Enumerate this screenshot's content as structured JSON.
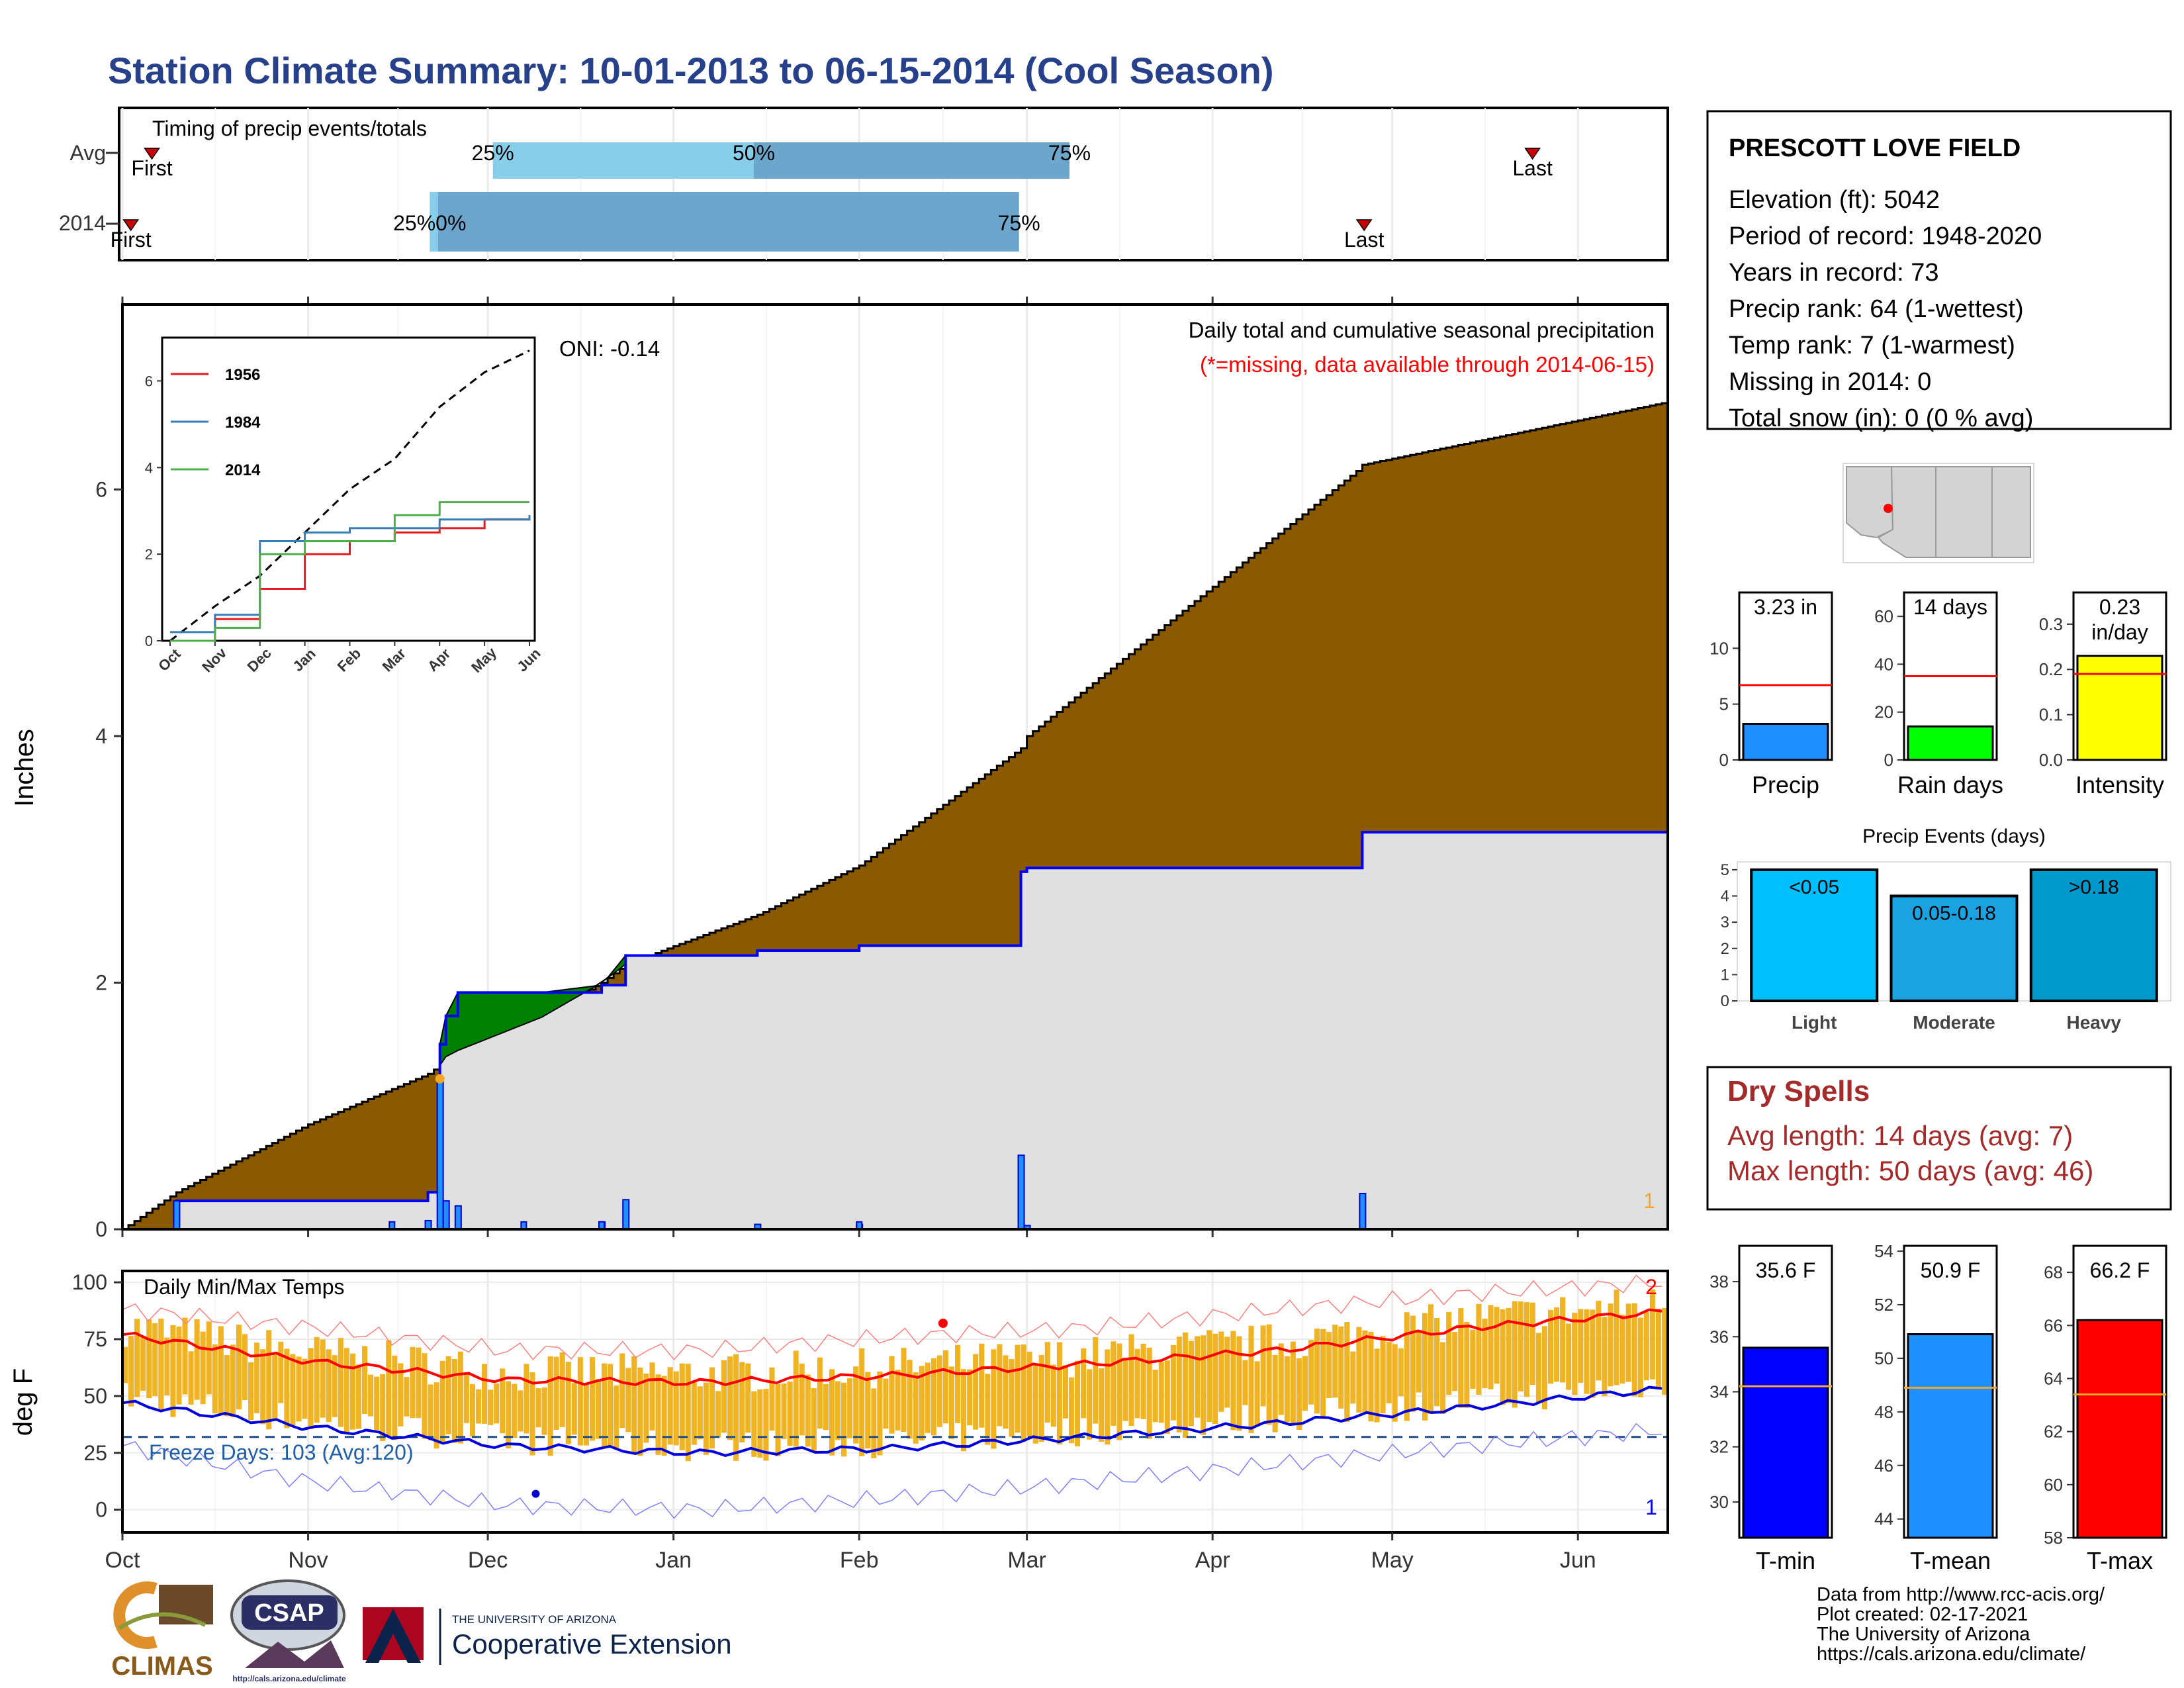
{
  "title": "Station Climate Summary: 10-01-2013 to 06-15-2014 (Cool Season)",
  "colors": {
    "title": "#27408b",
    "avg_fill": "#8b5a00",
    "year_fill": "#e0e0e0",
    "year_line": "#0000ff",
    "above_avg": "#008000",
    "q1": "#87ceeb",
    "q2": "#6ca6cd"
  },
  "timing": {
    "label": "Timing of precip events/totals",
    "rows": [
      {
        "name": "Avg",
        "first_label": "First",
        "last_label": "Last",
        "first": 0.07,
        "p25": 0.88,
        "p50": 1.5,
        "p75": 2.25,
        "last": 3.35
      },
      {
        "name": "2014",
        "first_label": "First",
        "last_label": "Last",
        "first": 0.02,
        "p25": 0.73,
        "p50": 0.75,
        "p75": 2.13,
        "last": 2.95
      }
    ],
    "pct_labels": [
      "25%",
      "50%",
      "75%"
    ],
    "overlap_label": "25%0%"
  },
  "precip": {
    "ylabel": "Inches",
    "oni": "ONI: -0.14",
    "note1": "Daily total and cumulative seasonal precipitation",
    "note2": "(*=missing, data available through 2014-06-15)",
    "corner_label": "1",
    "yticks": [
      "0",
      "2",
      "4",
      "6"
    ],
    "ylim": [
      0,
      7.5
    ]
  },
  "inset": {
    "legend": [
      "1956",
      "1984",
      "2014"
    ],
    "legend_colors": [
      "#e41a1c",
      "#377eb8",
      "#4daf4a"
    ],
    "yticks": [
      "0",
      "2",
      "4",
      "6"
    ],
    "xticks": [
      "Oct",
      "Nov",
      "Dec",
      "Jan",
      "Feb",
      "Mar",
      "Apr",
      "May",
      "Jun"
    ]
  },
  "temp": {
    "ylabel": "deg F",
    "label": "Daily Min/Max Temps",
    "freeze": "Freeze Days: 103 (Avg:120)",
    "marker_top": "2",
    "marker_bottom": "1",
    "yticks": [
      "0",
      "25",
      "50",
      "75",
      "100"
    ]
  },
  "months": [
    "Oct",
    "Nov",
    "Dec",
    "Jan",
    "Feb",
    "Mar",
    "Apr",
    "May",
    "Jun"
  ],
  "station": {
    "name": "PRESCOTT LOVE FIELD",
    "lines": [
      "Elevation (ft): 5042",
      "Period of record: 1948-2020",
      "Years in record: 73",
      "Precip rank: 64 (1-wettest)",
      "Temp rank: 7 (1-warmest)",
      "Missing in 2014: 0",
      "Total snow (in): 0 (0 % avg)"
    ]
  },
  "chart_data": [
    {
      "type": "area",
      "title": "Daily total and cumulative seasonal precipitation",
      "ylabel": "Inches",
      "ylim": [
        0,
        7.5
      ],
      "x": [
        "2013-10-01",
        "2013-10-10",
        "2013-11-01",
        "2013-11-21",
        "2013-11-23",
        "2013-11-24",
        "2013-11-26",
        "2013-12-10",
        "2013-12-20",
        "2013-12-24",
        "2014-01-15",
        "2014-02-01",
        "2014-02-28",
        "2014-03-01",
        "2014-04-25",
        "2014-04-26",
        "2014-06-15"
      ],
      "series": [
        {
          "name": "Avg",
          "values": [
            0,
            0.3,
            0.85,
            1.26,
            1.33,
            1.4,
            1.45,
            1.72,
            2.0,
            2.15,
            2.55,
            2.95,
            3.9,
            4.0,
            6.15,
            6.2,
            6.7
          ]
        },
        {
          "name": "2014",
          "values": [
            0,
            0.23,
            0.23,
            0.3,
            1.5,
            1.73,
            1.92,
            1.92,
            1.98,
            2.22,
            2.26,
            2.3,
            2.9,
            2.93,
            2.93,
            3.22,
            3.22
          ]
        }
      ]
    },
    {
      "type": "line",
      "title": "",
      "xlabel": "",
      "ylabel": "",
      "ylim": [
        0,
        7
      ],
      "x": [
        "Oct",
        "Nov",
        "Dec",
        "Jan",
        "Feb",
        "Mar",
        "Apr",
        "May",
        "Jun"
      ],
      "series": [
        {
          "name": "",
          "values": [
            0,
            0.8,
            1.5,
            2.5,
            3.5,
            4.2,
            5.4,
            6.2,
            6.7
          ]
        },
        {
          "name": "1956",
          "values": [
            0,
            0.5,
            1.2,
            2.0,
            2.3,
            2.5,
            2.6,
            2.8,
            2.9
          ]
        },
        {
          "name": "1984",
          "values": [
            0.2,
            0.6,
            2.3,
            2.5,
            2.6,
            2.6,
            2.8,
            2.8,
            2.9
          ]
        },
        {
          "name": "2014",
          "values": [
            0,
            0.3,
            2.0,
            2.3,
            2.3,
            2.9,
            3.2,
            3.2,
            3.2
          ]
        }
      ]
    },
    {
      "type": "line",
      "title": "Daily Min/Max Temps",
      "ylabel": "deg F",
      "ylim": [
        -10,
        105
      ],
      "x": [
        "Oct",
        "Nov",
        "Dec",
        "Jan",
        "Feb",
        "Mar",
        "Apr",
        "May",
        "Jun"
      ],
      "series": [
        {
          "name": "Avg max",
          "values": [
            77,
            65,
            57,
            56,
            59,
            64,
            70,
            80,
            87
          ]
        },
        {
          "name": "Avg min",
          "values": [
            47,
            36,
            28,
            25,
            27,
            32,
            38,
            45,
            53
          ]
        },
        {
          "name": "Record max",
          "values": [
            88,
            80,
            70,
            70,
            76,
            80,
            88,
            95,
            100
          ]
        },
        {
          "name": "Record min",
          "values": [
            28,
            12,
            2,
            0,
            5,
            12,
            20,
            28,
            35
          ]
        }
      ],
      "freeze_days": 103,
      "freeze_days_avg": 120
    },
    {
      "type": "bar",
      "categories": [
        "Precip",
        "Rain days",
        "Intensity"
      ],
      "values": [
        3.23,
        14,
        0.23
      ],
      "labels": [
        "3.23 in",
        "14 days",
        "0.23\nin/day"
      ],
      "avg": [
        6.7,
        35,
        0.19
      ],
      "ylims": [
        [
          0,
          15
        ],
        [
          0,
          70
        ],
        [
          0,
          0.37
        ]
      ],
      "yticks": [
        [
          "0",
          "5",
          "10"
        ],
        [
          "0",
          "20",
          "40",
          "60"
        ],
        [
          "0.0",
          "0.1",
          "0.2",
          "0.3"
        ]
      ],
      "colors": [
        "#1e90ff",
        "#00ff00",
        "#ffff00"
      ]
    },
    {
      "type": "bar",
      "title": "Precip Events (days)",
      "categories": [
        "Light",
        "Moderate",
        "Heavy"
      ],
      "values": [
        5,
        4,
        5
      ],
      "labels": [
        "<0.05",
        "0.05-0.18",
        ">0.18"
      ],
      "ylim": [
        0,
        5.3
      ],
      "yticks": [
        "0",
        "1",
        "2",
        "3",
        "4",
        "5"
      ],
      "colors": [
        "#00bfff",
        "#1aa3e0",
        "#0099cc"
      ]
    },
    {
      "type": "bar",
      "categories": [
        "T-min",
        "T-mean",
        "T-max"
      ],
      "values": [
        35.6,
        50.9,
        66.2
      ],
      "labels": [
        "35.6 F",
        "50.9 F",
        "66.2 F"
      ],
      "avg": [
        34.2,
        48.9,
        63.4
      ],
      "ylims": [
        [
          28.7,
          39.3
        ],
        [
          43.3,
          54.2
        ],
        [
          58,
          69
        ]
      ],
      "yticks": [
        [
          "30",
          "32",
          "34",
          "36",
          "38"
        ],
        [
          "44",
          "46",
          "48",
          "50",
          "52",
          "54"
        ],
        [
          "58",
          "60",
          "62",
          "64",
          "66",
          "68"
        ]
      ],
      "colors": [
        "#0000ff",
        "#1e90ff",
        "#ff0000"
      ]
    }
  ],
  "dry_spells": {
    "title": "Dry Spells",
    "line1": "Avg length: 14 days (avg: 7)",
    "line2": "Max length: 50 days (avg: 46)"
  },
  "footer": {
    "lines": [
      "Data from http://www.rcc-acis.org/",
      "Plot created: 02-17-2021",
      "The University of Arizona",
      "https://cals.arizona.edu/climate/"
    ],
    "climas": "CLIMAS",
    "csap": "CSAP",
    "csap_url": "http://cals.arizona.edu/climate",
    "ua_small": "THE UNIVERSITY OF ARIZONA",
    "ua_big": "Cooperative Extension"
  }
}
